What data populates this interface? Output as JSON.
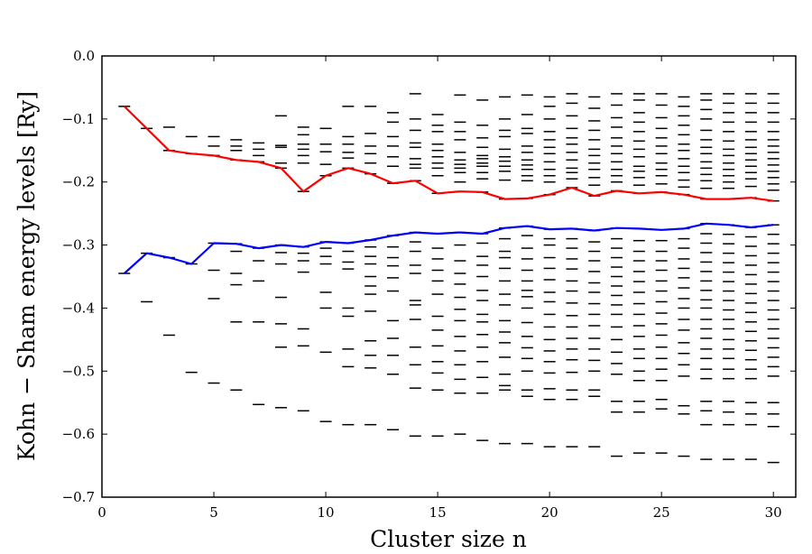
{
  "chart_data": {
    "type": "scatter",
    "title": "",
    "xlabel": "Cluster size n",
    "ylabel": "Kohn − Sham energy levels [Ry]",
    "xlim": [
      0,
      31
    ],
    "ylim": [
      -0.7,
      0.0
    ],
    "xticks": [
      0,
      5,
      10,
      15,
      20,
      25,
      30
    ],
    "yticks": [
      -0.7,
      -0.6,
      -0.5,
      -0.4,
      -0.3,
      -0.2,
      -0.1,
      0.0
    ],
    "xtick_labels": [
      "0",
      "5",
      "10",
      "15",
      "20",
      "25",
      "30"
    ],
    "ytick_labels": [
      "−0.7",
      "−0.6",
      "−0.5",
      "−0.4",
      "−0.3",
      "−0.2",
      "−0.1",
      "0.0"
    ],
    "grid": false,
    "legend": "none",
    "colors": {
      "lumo": "#ff0000",
      "homo": "#0000ff",
      "levels": "#000000"
    },
    "series": [
      {
        "role": "upper",
        "values": [
          [
            1,
            -0.08
          ],
          [
            2,
            -0.115
          ],
          [
            3,
            -0.15
          ],
          [
            4,
            -0.155
          ],
          [
            5,
            -0.158
          ],
          [
            6,
            -0.165
          ],
          [
            7,
            -0.168
          ],
          [
            8,
            -0.178
          ],
          [
            9,
            -0.215
          ],
          [
            10,
            -0.19
          ],
          [
            11,
            -0.178
          ],
          [
            12,
            -0.187
          ],
          [
            13,
            -0.202
          ],
          [
            14,
            -0.198
          ],
          [
            15,
            -0.218
          ],
          [
            16,
            -0.215
          ],
          [
            17,
            -0.216
          ],
          [
            18,
            -0.227
          ],
          [
            19,
            -0.226
          ],
          [
            20,
            -0.22
          ],
          [
            21,
            -0.209
          ],
          [
            22,
            -0.222
          ],
          [
            23,
            -0.214
          ],
          [
            24,
            -0.218
          ],
          [
            25,
            -0.216
          ],
          [
            26,
            -0.22
          ],
          [
            27,
            -0.227
          ],
          [
            28,
            -0.227
          ],
          [
            29,
            -0.225
          ],
          [
            30,
            -0.23
          ]
        ]
      },
      {
        "role": "lower",
        "values": [
          [
            1,
            -0.345
          ],
          [
            2,
            -0.313
          ],
          [
            3,
            -0.32
          ],
          [
            4,
            -0.33
          ],
          [
            5,
            -0.297
          ],
          [
            6,
            -0.298
          ],
          [
            7,
            -0.305
          ],
          [
            8,
            -0.3
          ],
          [
            9,
            -0.303
          ],
          [
            10,
            -0.295
          ],
          [
            11,
            -0.297
          ],
          [
            12,
            -0.292
          ],
          [
            13,
            -0.285
          ],
          [
            14,
            -0.28
          ],
          [
            15,
            -0.282
          ],
          [
            16,
            -0.28
          ],
          [
            17,
            -0.282
          ],
          [
            18,
            -0.273
          ],
          [
            19,
            -0.27
          ],
          [
            20,
            -0.275
          ],
          [
            21,
            -0.274
          ],
          [
            22,
            -0.277
          ],
          [
            23,
            -0.273
          ],
          [
            24,
            -0.274
          ],
          [
            25,
            -0.276
          ],
          [
            26,
            -0.274
          ],
          [
            27,
            -0.266
          ],
          [
            28,
            -0.268
          ],
          [
            29,
            -0.272
          ],
          [
            30,
            -0.268
          ]
        ]
      }
    ],
    "levels": [
      [
        1,
        [
          -0.08,
          -0.345
        ]
      ],
      [
        2,
        [
          -0.115,
          -0.313,
          -0.39
        ]
      ],
      [
        3,
        [
          -0.113,
          -0.15,
          -0.32,
          -0.443
        ]
      ],
      [
        4,
        [
          -0.128,
          -0.155,
          -0.33,
          -0.502
        ]
      ],
      [
        5,
        [
          -0.128,
          -0.143,
          -0.158,
          -0.297,
          -0.34,
          -0.385,
          -0.519
        ]
      ],
      [
        6,
        [
          -0.133,
          -0.143,
          -0.15,
          -0.165,
          -0.298,
          -0.31,
          -0.345,
          -0.363,
          -0.422,
          -0.53
        ]
      ],
      [
        7,
        [
          -0.138,
          -0.148,
          -0.158,
          -0.168,
          -0.305,
          -0.325,
          -0.357,
          -0.422,
          -0.553
        ]
      ],
      [
        8,
        [
          -0.095,
          -0.142,
          -0.145,
          -0.17,
          -0.178,
          -0.3,
          -0.312,
          -0.33,
          -0.383,
          -0.425,
          -0.462,
          -0.558
        ]
      ],
      [
        9,
        [
          -0.113,
          -0.125,
          -0.14,
          -0.148,
          -0.158,
          -0.17,
          -0.215,
          -0.303,
          -0.313,
          -0.325,
          -0.343,
          -0.433,
          -0.46,
          -0.563
        ]
      ],
      [
        10,
        [
          -0.115,
          -0.14,
          -0.152,
          -0.172,
          -0.19,
          -0.295,
          -0.305,
          -0.318,
          -0.33,
          -0.375,
          -0.4,
          -0.47,
          -0.58
        ]
      ],
      [
        11,
        [
          -0.08,
          -0.128,
          -0.14,
          -0.153,
          -0.162,
          -0.178,
          -0.297,
          -0.31,
          -0.327,
          -0.338,
          -0.4,
          -0.413,
          -0.465,
          -0.493,
          -0.585
        ]
      ],
      [
        12,
        [
          -0.08,
          -0.123,
          -0.143,
          -0.155,
          -0.17,
          -0.187,
          -0.292,
          -0.303,
          -0.318,
          -0.33,
          -0.35,
          -0.365,
          -0.378,
          -0.405,
          -0.452,
          -0.475,
          -0.495,
          -0.585
        ]
      ],
      [
        13,
        [
          -0.09,
          -0.105,
          -0.128,
          -0.143,
          -0.16,
          -0.175,
          -0.202,
          -0.285,
          -0.303,
          -0.32,
          -0.333,
          -0.352,
          -0.373,
          -0.42,
          -0.448,
          -0.475,
          -0.505,
          -0.593
        ]
      ],
      [
        14,
        [
          -0.06,
          -0.1,
          -0.118,
          -0.138,
          -0.145,
          -0.163,
          -0.172,
          -0.178,
          -0.198,
          -0.28,
          -0.295,
          -0.31,
          -0.332,
          -0.345,
          -0.388,
          -0.395,
          -0.418,
          -0.462,
          -0.49,
          -0.527,
          -0.603
        ]
      ],
      [
        15,
        [
          -0.093,
          -0.11,
          -0.12,
          -0.14,
          -0.15,
          -0.16,
          -0.17,
          -0.178,
          -0.19,
          -0.218,
          -0.282,
          -0.305,
          -0.322,
          -0.34,
          -0.357,
          -0.378,
          -0.413,
          -0.435,
          -0.46,
          -0.485,
          -0.503,
          -0.53,
          -0.603
        ]
      ],
      [
        16,
        [
          -0.062,
          -0.105,
          -0.12,
          -0.133,
          -0.153,
          -0.165,
          -0.172,
          -0.178,
          -0.185,
          -0.2,
          -0.215,
          -0.28,
          -0.3,
          -0.325,
          -0.345,
          -0.362,
          -0.383,
          -0.402,
          -0.42,
          -0.445,
          -0.468,
          -0.49,
          -0.513,
          -0.535,
          -0.6
        ]
      ],
      [
        17,
        [
          -0.07,
          -0.11,
          -0.13,
          -0.145,
          -0.158,
          -0.163,
          -0.17,
          -0.175,
          -0.185,
          -0.195,
          -0.216,
          -0.282,
          -0.297,
          -0.318,
          -0.332,
          -0.35,
          -0.372,
          -0.388,
          -0.41,
          -0.422,
          -0.442,
          -0.462,
          -0.485,
          -0.51,
          -0.535,
          -0.61
        ]
      ],
      [
        18,
        [
          -0.065,
          -0.1,
          -0.118,
          -0.128,
          -0.148,
          -0.16,
          -0.167,
          -0.175,
          -0.183,
          -0.197,
          -0.227,
          -0.273,
          -0.29,
          -0.31,
          -0.32,
          -0.337,
          -0.357,
          -0.378,
          -0.395,
          -0.42,
          -0.438,
          -0.455,
          -0.478,
          -0.505,
          -0.523,
          -0.53,
          -0.615
        ]
      ],
      [
        19,
        [
          -0.062,
          -0.093,
          -0.115,
          -0.123,
          -0.143,
          -0.153,
          -0.165,
          -0.173,
          -0.18,
          -0.19,
          -0.198,
          -0.226,
          -0.27,
          -0.285,
          -0.305,
          -0.322,
          -0.34,
          -0.357,
          -0.372,
          -0.382,
          -0.4,
          -0.423,
          -0.445,
          -0.463,
          -0.48,
          -0.5,
          -0.53,
          -0.54,
          -0.615
        ]
      ],
      [
        20,
        [
          -0.065,
          -0.08,
          -0.1,
          -0.12,
          -0.133,
          -0.145,
          -0.155,
          -0.168,
          -0.18,
          -0.19,
          -0.2,
          -0.22,
          -0.275,
          -0.29,
          -0.3,
          -0.32,
          -0.337,
          -0.355,
          -0.375,
          -0.39,
          -0.41,
          -0.43,
          -0.45,
          -0.468,
          -0.485,
          -0.503,
          -0.528,
          -0.545,
          -0.62
        ]
      ],
      [
        21,
        [
          -0.06,
          -0.075,
          -0.095,
          -0.115,
          -0.13,
          -0.14,
          -0.153,
          -0.165,
          -0.178,
          -0.185,
          -0.195,
          -0.209,
          -0.274,
          -0.29,
          -0.305,
          -0.322,
          -0.338,
          -0.357,
          -0.373,
          -0.392,
          -0.412,
          -0.43,
          -0.448,
          -0.465,
          -0.482,
          -0.502,
          -0.53,
          -0.545,
          -0.62
        ]
      ],
      [
        22,
        [
          -0.065,
          -0.083,
          -0.103,
          -0.118,
          -0.133,
          -0.148,
          -0.158,
          -0.17,
          -0.18,
          -0.193,
          -0.205,
          -0.222,
          -0.277,
          -0.295,
          -0.31,
          -0.325,
          -0.342,
          -0.36,
          -0.375,
          -0.393,
          -0.41,
          -0.428,
          -0.448,
          -0.465,
          -0.483,
          -0.5,
          -0.53,
          -0.54,
          -0.62
        ]
      ],
      [
        23,
        [
          -0.06,
          -0.078,
          -0.098,
          -0.113,
          -0.13,
          -0.143,
          -0.155,
          -0.168,
          -0.18,
          -0.19,
          -0.2,
          -0.214,
          -0.273,
          -0.29,
          -0.305,
          -0.32,
          -0.335,
          -0.35,
          -0.365,
          -0.38,
          -0.395,
          -0.41,
          -0.43,
          -0.45,
          -0.47,
          -0.488,
          -0.505,
          -0.548,
          -0.565,
          -0.635
        ]
      ],
      [
        24,
        [
          -0.06,
          -0.07,
          -0.09,
          -0.105,
          -0.12,
          -0.135,
          -0.148,
          -0.16,
          -0.175,
          -0.183,
          -0.193,
          -0.205,
          -0.218,
          -0.274,
          -0.293,
          -0.31,
          -0.325,
          -0.342,
          -0.358,
          -0.375,
          -0.393,
          -0.41,
          -0.428,
          -0.445,
          -0.465,
          -0.48,
          -0.5,
          -0.515,
          -0.548,
          -0.565,
          -0.63
        ]
      ],
      [
        25,
        [
          -0.06,
          -0.078,
          -0.098,
          -0.115,
          -0.13,
          -0.143,
          -0.155,
          -0.17,
          -0.18,
          -0.19,
          -0.203,
          -0.216,
          -0.276,
          -0.293,
          -0.31,
          -0.325,
          -0.34,
          -0.357,
          -0.373,
          -0.39,
          -0.408,
          -0.425,
          -0.443,
          -0.462,
          -0.48,
          -0.497,
          -0.515,
          -0.545,
          -0.56,
          -0.63
        ]
      ],
      [
        26,
        [
          -0.065,
          -0.08,
          -0.095,
          -0.11,
          -0.125,
          -0.14,
          -0.15,
          -0.163,
          -0.175,
          -0.185,
          -0.197,
          -0.208,
          -0.22,
          -0.274,
          -0.29,
          -0.305,
          -0.322,
          -0.337,
          -0.352,
          -0.368,
          -0.385,
          -0.4,
          -0.418,
          -0.435,
          -0.455,
          -0.472,
          -0.49,
          -0.508,
          -0.555,
          -0.568,
          -0.635
        ]
      ],
      [
        27,
        [
          -0.06,
          -0.07,
          -0.085,
          -0.1,
          -0.118,
          -0.133,
          -0.145,
          -0.155,
          -0.168,
          -0.178,
          -0.188,
          -0.198,
          -0.21,
          -0.227,
          -0.266,
          -0.282,
          -0.297,
          -0.312,
          -0.327,
          -0.342,
          -0.357,
          -0.372,
          -0.387,
          -0.4,
          -0.418,
          -0.433,
          -0.448,
          -0.465,
          -0.48,
          -0.497,
          -0.512,
          -0.548,
          -0.563,
          -0.585,
          -0.64
        ]
      ],
      [
        28,
        [
          -0.06,
          -0.075,
          -0.09,
          -0.105,
          -0.12,
          -0.135,
          -0.148,
          -0.158,
          -0.17,
          -0.18,
          -0.19,
          -0.2,
          -0.21,
          -0.227,
          -0.268,
          -0.283,
          -0.298,
          -0.313,
          -0.328,
          -0.343,
          -0.358,
          -0.373,
          -0.388,
          -0.403,
          -0.418,
          -0.433,
          -0.45,
          -0.465,
          -0.48,
          -0.497,
          -0.512,
          -0.548,
          -0.565,
          -0.585,
          -0.64
        ]
      ],
      [
        29,
        [
          -0.06,
          -0.075,
          -0.09,
          -0.105,
          -0.12,
          -0.133,
          -0.145,
          -0.155,
          -0.165,
          -0.175,
          -0.185,
          -0.195,
          -0.207,
          -0.225,
          -0.272,
          -0.287,
          -0.302,
          -0.317,
          -0.332,
          -0.347,
          -0.362,
          -0.377,
          -0.392,
          -0.407,
          -0.422,
          -0.437,
          -0.452,
          -0.467,
          -0.482,
          -0.497,
          -0.512,
          -0.55,
          -0.568,
          -0.585,
          -0.64
        ]
      ],
      [
        30,
        [
          -0.06,
          -0.075,
          -0.09,
          -0.105,
          -0.12,
          -0.133,
          -0.143,
          -0.153,
          -0.163,
          -0.173,
          -0.183,
          -0.193,
          -0.203,
          -0.213,
          -0.23,
          -0.268,
          -0.283,
          -0.298,
          -0.313,
          -0.328,
          -0.343,
          -0.358,
          -0.373,
          -0.388,
          -0.403,
          -0.418,
          -0.433,
          -0.448,
          -0.463,
          -0.478,
          -0.493,
          -0.508,
          -0.55,
          -0.568,
          -0.588,
          -0.645
        ]
      ]
    ]
  }
}
